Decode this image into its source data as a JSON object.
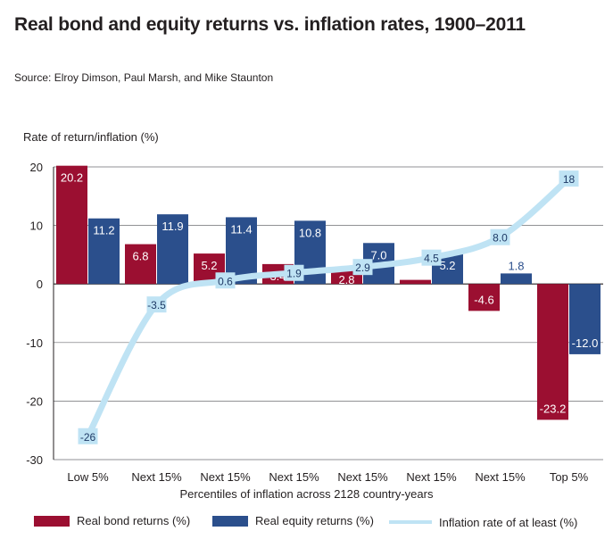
{
  "title": "Real bond and equity returns vs. inflation rates, 1900–2011",
  "source": "Source: Elroy Dimson, Paul Marsh, and Mike Staunton",
  "colors": {
    "bond": "#9b0f31",
    "equity": "#2b4f8c",
    "inflation": "#bfe3f4",
    "label_text_light": "#ffffff",
    "label_text_dark": "#2b4f8c"
  },
  "chart_data": {
    "type": "bar",
    "title": "Real bond and equity returns vs. inflation rates, 1900–2011",
    "ylabel": "Rate of return/inflation (%)",
    "xlabel": "Percentiles of inflation across 2128 country-years",
    "categories": [
      "Low 5%",
      "Next 15%",
      "Next 15%",
      "Next 15%",
      "Next 15%",
      "Next 15%",
      "Next 15%",
      "Top 5%"
    ],
    "ylim": [
      -30,
      20
    ],
    "yticks": [
      20,
      10,
      0,
      -10,
      -20,
      -30
    ],
    "ytick_labels": [
      "20",
      "10",
      "0",
      "-10",
      "-20",
      "-30"
    ],
    "grid": "horizontal",
    "legend_position": "bottom",
    "series": [
      {
        "name": "Real bond returns (%)",
        "kind": "bar",
        "values": [
          20.2,
          6.8,
          5.2,
          3.4,
          2.8,
          0.7,
          -4.6,
          -23.2
        ],
        "labels": [
          "20.2",
          "6.8",
          "5.2",
          "3.4",
          "2.8",
          "",
          "-4.6",
          "-23.2"
        ]
      },
      {
        "name": "Real equity returns (%)",
        "kind": "bar",
        "values": [
          11.2,
          11.9,
          11.4,
          10.8,
          7.0,
          5.2,
          1.8,
          -12.0
        ],
        "labels": [
          "11.2",
          "11.9",
          "11.4",
          "10.8",
          "7.0",
          "5.2",
          "1.8",
          "-12.0"
        ]
      },
      {
        "name": "Inflation rate of at least (%)",
        "kind": "line",
        "values": [
          -26,
          -3.5,
          0.6,
          1.9,
          2.9,
          4.5,
          8.0,
          18
        ],
        "labels": [
          "-26",
          "-3.5",
          "0.6",
          "1.9",
          "2.9",
          "4.5",
          "8.0",
          "18"
        ]
      }
    ]
  }
}
